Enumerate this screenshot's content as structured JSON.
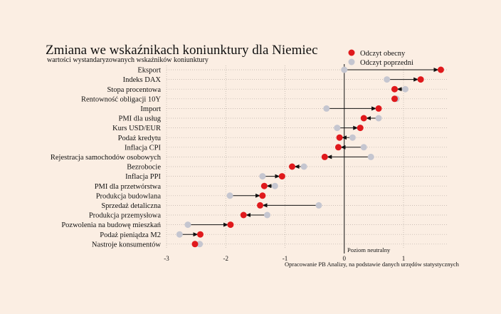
{
  "header": {
    "title": "Zmiana we wskaźnikach koniunktury dla Niemiec",
    "subtitle": "wartości wystandaryzowanych wskaźników koniunktury"
  },
  "legend": {
    "current": "Odczyt obecny",
    "previous": "Odczyt poprzedni"
  },
  "colors": {
    "current": "#e0191c",
    "previous": "#c5c6d0",
    "arrow": "#111111",
    "grid": "#b9aea6",
    "background": "#fbeee3"
  },
  "reference_label": "Poziom neutralny",
  "source_note": "Opracowanie PB Analizy, na podstawie danych urzędów statystycznych",
  "chart_data": {
    "type": "dumbbell",
    "title": "Zmiana we wskaźnikach koniunktury dla Niemiec",
    "subtitle": "wartości wystandaryzowanych wskaźników koniunktury",
    "xlim": [
      -3,
      1.7
    ],
    "xticks": [
      -3,
      -2,
      -1,
      0,
      1
    ],
    "tick_labels": [
      "-3",
      "-2",
      "-1",
      "0",
      "1"
    ],
    "grid": "dotted",
    "legend_position": "top-right",
    "reference_line": 0,
    "categories": [
      "Eksport",
      "Indeks DAX",
      "Stopa procentowa",
      "Rentowność obligacji 10Y",
      "Import",
      "PMI dla usług",
      "Kurs USD/EUR",
      "Podaż kredytu",
      "Inflacja CPI",
      "Rejestracja samochodów osobowych",
      "Bezrobocie",
      "Inflacja PPI",
      "PMI dla przetwórstwa",
      "Produkcja budowlana",
      "Sprzedaż detaliczna",
      "Produkcja przemysłowa",
      "Pozwolenia na budowę mieszkań",
      "Podaż pieniądza M2",
      "Nastroje konsumentów"
    ],
    "series": [
      {
        "name": "Odczyt obecny",
        "values": [
          1.63,
          1.29,
          0.85,
          0.85,
          0.58,
          0.33,
          0.27,
          -0.08,
          -0.1,
          -0.33,
          -0.88,
          -1.05,
          -1.35,
          -1.38,
          -1.42,
          -1.7,
          -1.92,
          -2.43,
          -2.52
        ]
      },
      {
        "name": "Odczyt poprzedni",
        "values": [
          0.0,
          0.72,
          1.03,
          0.88,
          -0.3,
          0.58,
          -0.12,
          0.14,
          0.33,
          0.45,
          -0.68,
          -1.38,
          -1.17,
          -1.93,
          -0.43,
          -1.3,
          -2.64,
          -2.78,
          -2.44
        ]
      }
    ]
  }
}
